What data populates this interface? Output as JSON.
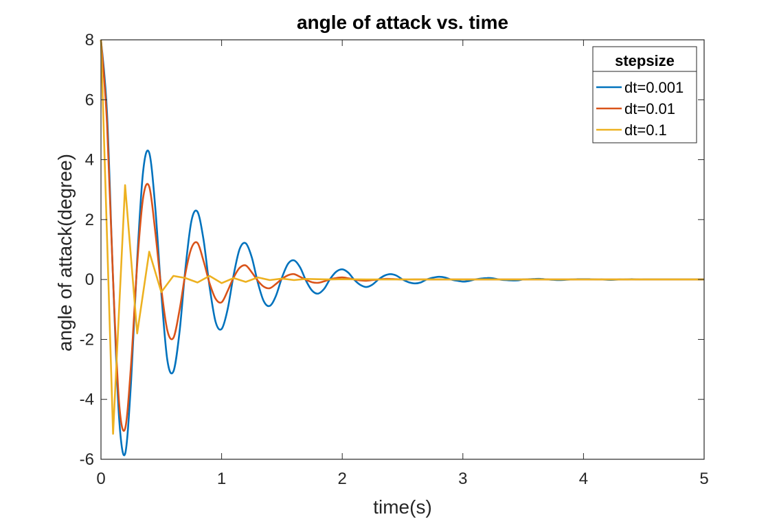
{
  "chart_data": {
    "type": "line",
    "title": "angle of attack vs. time",
    "xlabel": "time(s)",
    "ylabel": "angle of attack(degree)",
    "xlim": [
      0,
      5
    ],
    "ylim": [
      -6,
      8
    ],
    "xticks": [
      0,
      1,
      2,
      3,
      4,
      5
    ],
    "yticks": [
      -6,
      -4,
      -2,
      0,
      2,
      4,
      6,
      8
    ],
    "grid": false,
    "box": true,
    "legend": {
      "title": "stepsize",
      "placement": "top-right"
    },
    "series": [
      {
        "name": "dt=0.001",
        "color": "#0072BD",
        "x": [
          0,
          0.05,
          0.1,
          0.15,
          0.2,
          0.25,
          0.3,
          0.35,
          0.4,
          0.45,
          0.5,
          0.55,
          0.6,
          0.65,
          0.7,
          0.75,
          0.8,
          0.85,
          0.9,
          0.95,
          1.0,
          1.05,
          1.1,
          1.15,
          1.2,
          1.25,
          1.3,
          1.35,
          1.4,
          1.45,
          1.5,
          1.55,
          1.6,
          1.65,
          1.7,
          1.75,
          1.8,
          1.85,
          1.9,
          1.95,
          2.0,
          2.05,
          2.1,
          2.15,
          2.2,
          2.25,
          2.3,
          2.35,
          2.4,
          2.45,
          2.5,
          2.55,
          2.6,
          2.65,
          2.7,
          2.75,
          2.8,
          2.85,
          2.9,
          2.95,
          3.0,
          3.05,
          3.1,
          3.15,
          3.2,
          3.25,
          3.3,
          3.35,
          3.4,
          3.45,
          3.5,
          3.55,
          3.6,
          3.65,
          3.7,
          3.75,
          3.8,
          3.85,
          3.9,
          3.95,
          4.0,
          4.05,
          4.1,
          4.15,
          4.2,
          4.25,
          4.3,
          4.35,
          4.4,
          4.45,
          4.5,
          4.55,
          4.6,
          4.65,
          4.7,
          4.75,
          4.8,
          4.85,
          4.9,
          4.95,
          5.0
        ],
        "y": [
          8.0,
          5.55,
          0.01,
          -4.6,
          -5.82,
          -3.37,
          0.66,
          3.64,
          4.23,
          2.41,
          -0.45,
          -2.69,
          -3.07,
          -1.8,
          0.36,
          1.96,
          2.26,
          1.33,
          -0.23,
          -1.41,
          -1.65,
          -0.99,
          0.16,
          1.02,
          1.21,
          0.74,
          -0.1,
          -0.73,
          -0.88,
          -0.55,
          0.06,
          0.52,
          0.64,
          0.41,
          -0.04,
          -0.37,
          -0.47,
          -0.31,
          0.02,
          0.26,
          0.34,
          0.23,
          -0.01,
          -0.18,
          -0.25,
          -0.17,
          0.0,
          0.13,
          0.18,
          0.13,
          0.0,
          -0.09,
          -0.13,
          -0.1,
          0.0,
          0.06,
          0.09,
          0.07,
          0.0,
          -0.04,
          -0.07,
          -0.05,
          0.0,
          0.03,
          0.05,
          0.04,
          0.0,
          -0.02,
          -0.03,
          -0.03,
          0.0,
          0.01,
          0.02,
          0.02,
          0.0,
          -0.01,
          -0.02,
          -0.01,
          0.0,
          0.01,
          0.01,
          0.01,
          0.0,
          0.0,
          -0.01,
          -0.01,
          0.0,
          0.0,
          0.01,
          0.0,
          0.0,
          0.0,
          0.0,
          0.0,
          0.0,
          0.0,
          0.0,
          0.0,
          0.0,
          0.0,
          0.0
        ]
      },
      {
        "name": "dt=0.01",
        "color": "#D95319",
        "x": [
          0,
          0.05,
          0.1,
          0.15,
          0.2,
          0.25,
          0.3,
          0.35,
          0.4,
          0.45,
          0.5,
          0.55,
          0.6,
          0.65,
          0.7,
          0.75,
          0.8,
          0.85,
          0.9,
          0.95,
          1.0,
          1.05,
          1.1,
          1.15,
          1.2,
          1.25,
          1.3,
          1.35,
          1.4,
          1.45,
          1.5,
          1.55,
          1.6,
          1.65,
          1.7,
          1.75,
          1.8,
          1.85,
          1.9,
          1.95,
          2.0,
          2.05,
          2.1,
          2.15,
          2.2,
          2.25,
          2.3,
          2.35,
          2.4,
          2.45,
          2.5,
          2.6,
          2.8,
          3.0,
          3.5,
          4.0,
          5.0
        ],
        "y": [
          8.0,
          5.2,
          0.01,
          -4.1,
          -4.98,
          -2.8,
          0.5,
          2.75,
          3.1,
          1.6,
          -0.3,
          -1.7,
          -1.95,
          -1.05,
          0.2,
          1.05,
          1.22,
          0.62,
          -0.12,
          -0.64,
          -0.76,
          -0.38,
          0.07,
          0.39,
          0.47,
          0.24,
          -0.04,
          -0.24,
          -0.29,
          -0.15,
          0.02,
          0.14,
          0.18,
          0.09,
          -0.01,
          -0.09,
          -0.11,
          -0.06,
          0.01,
          0.05,
          0.07,
          0.04,
          0.0,
          -0.03,
          -0.04,
          -0.02,
          0.0,
          0.02,
          0.02,
          0.01,
          0.0,
          0.0,
          0.0,
          0.0,
          0.0,
          0.0,
          0.0
        ]
      },
      {
        "name": "dt=0.1",
        "color": "#EDB120",
        "x": [
          0,
          0.1,
          0.2,
          0.3,
          0.4,
          0.5,
          0.6,
          0.7,
          0.8,
          0.9,
          1.0,
          1.1,
          1.2,
          1.3,
          1.4,
          1.5,
          1.6,
          1.7,
          1.8,
          1.9,
          2.0,
          2.2,
          2.4,
          2.6,
          2.8,
          3.0,
          3.5,
          4.0,
          4.5,
          5.0
        ],
        "y": [
          8.0,
          -5.15,
          3.15,
          -1.8,
          0.93,
          -0.42,
          0.12,
          0.05,
          -0.1,
          0.12,
          -0.12,
          0.05,
          -0.08,
          0.07,
          -0.02,
          0.03,
          -0.02,
          0.02,
          0.01,
          0.0,
          0.01,
          0.0,
          0.0,
          0.0,
          0.0,
          0.0,
          0.0,
          0.0,
          0.0,
          0.0
        ]
      }
    ]
  }
}
